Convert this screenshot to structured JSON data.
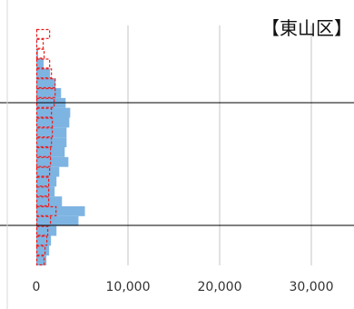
{
  "chart_data": {
    "type": "bar",
    "orientation": "horizontal",
    "title": "【東山区】",
    "xlabel": "",
    "ylabel": "",
    "xlim": [
      0,
      35000
    ],
    "x_ticks": [
      {
        "value": 0,
        "label": "0"
      },
      {
        "value": 10000,
        "label": "10,000"
      },
      {
        "value": 20000,
        "label": "20,000"
      },
      {
        "value": 30000,
        "label": "30,000"
      }
    ],
    "grid": "vertical",
    "series": [
      {
        "values": [
          10,
          50,
          200,
          800,
          1500,
          2100,
          2700,
          3200,
          3700,
          3600,
          3300,
          3300,
          3100,
          3500,
          2500,
          2200,
          2000,
          2800,
          5300,
          4600,
          2200,
          1600,
          1400,
          1100
        ],
        "color": "#7eb4e2"
      },
      {
        "values": [
          1500,
          800,
          900,
          1500,
          1700,
          2100,
          2100,
          2000,
          1700,
          1800,
          1800,
          1700,
          1600,
          1600,
          1500,
          1400,
          1400,
          1400,
          2200,
          1600,
          1300,
          1200,
          1000,
          900
        ],
        "color": "#ee1c1c",
        "style": "dashed-outline"
      }
    ]
  }
}
